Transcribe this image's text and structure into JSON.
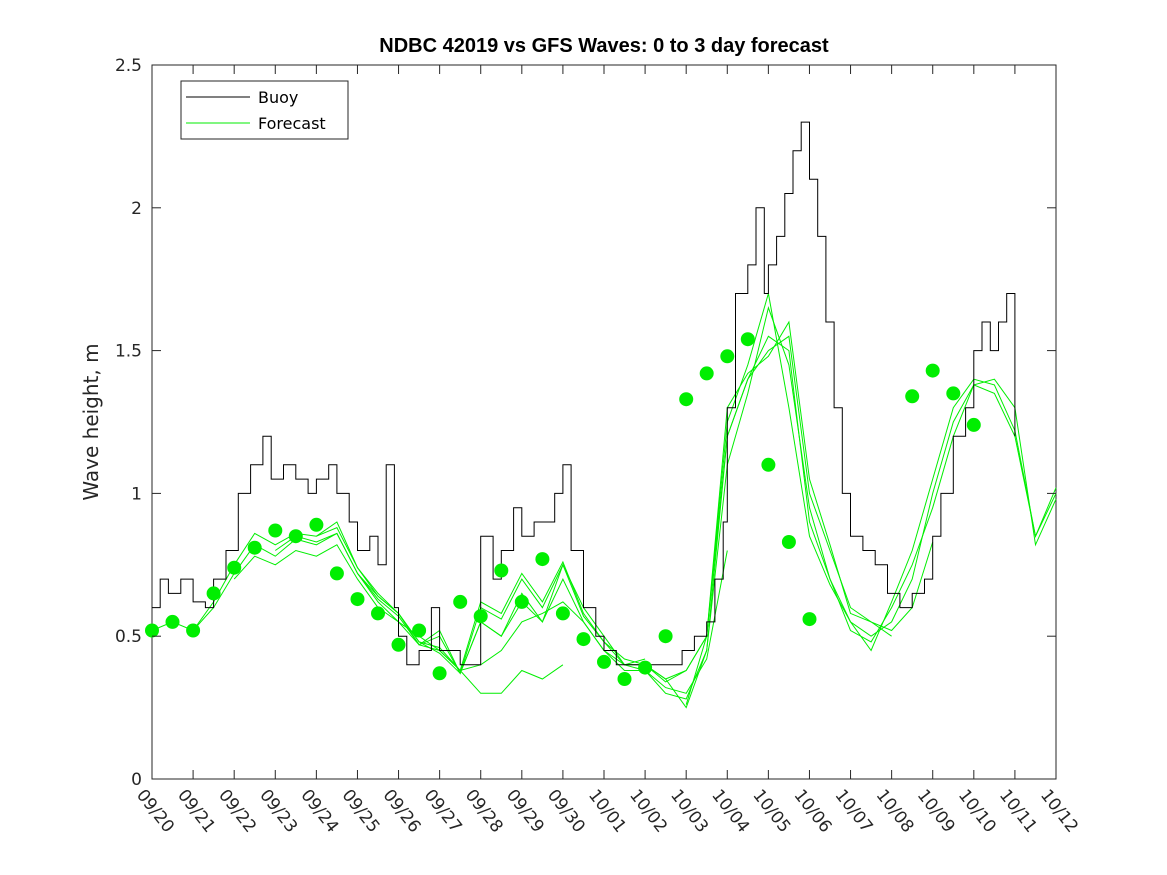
{
  "colors": {
    "buoy": "#000000",
    "forecast": "#00ee00",
    "marker": "#00ee00",
    "axis": "#262626",
    "background": "#ffffff"
  },
  "chart_data": {
    "type": "line",
    "title": "NDBC 42019 vs GFS Waves: 0 to 3 day forecast",
    "xlabel": "",
    "ylabel": "Wave height, m",
    "xlim": [
      0,
      22
    ],
    "ylim": [
      0,
      2.5
    ],
    "grid": false,
    "legend_position": "top-left",
    "x_tick_labels": [
      "09/20",
      "09/21",
      "09/22",
      "09/23",
      "09/24",
      "09/25",
      "09/26",
      "09/27",
      "09/28",
      "09/29",
      "09/30",
      "10/01",
      "10/02",
      "10/03",
      "10/04",
      "10/05",
      "10/06",
      "10/07",
      "10/08",
      "10/09",
      "10/10",
      "10/11",
      "10/12"
    ],
    "y_ticks": [
      0,
      0.5,
      1,
      1.5,
      2,
      2.5
    ],
    "y_tick_labels": [
      "0",
      "0.5",
      "1",
      "1.5",
      "2",
      "2.5"
    ],
    "series": [
      {
        "name": "Buoy",
        "kind": "line",
        "x": [
          0,
          0.2,
          0.4,
          0.7,
          1.0,
          1.3,
          1.5,
          1.8,
          2.1,
          2.4,
          2.7,
          2.9,
          3.2,
          3.5,
          3.8,
          4.0,
          4.3,
          4.5,
          4.8,
          5.0,
          5.3,
          5.5,
          5.7,
          5.9,
          6.0,
          6.2,
          6.5,
          6.8,
          7.0,
          7.2,
          7.5,
          7.8,
          8.0,
          8.3,
          8.5,
          8.8,
          9.0,
          9.3,
          9.5,
          9.8,
          10.0,
          10.2,
          10.5,
          10.8,
          11.0,
          11.3,
          11.6,
          12.0,
          12.3,
          12.6,
          12.9,
          13.2,
          13.5,
          13.7,
          13.9,
          14.0,
          14.2,
          14.5,
          14.7,
          14.9,
          15.0,
          15.2,
          15.4,
          15.6,
          15.8,
          16.0,
          16.2,
          16.4,
          16.6,
          16.8,
          17.0,
          17.3,
          17.6,
          17.9,
          18.2,
          18.5,
          18.8,
          19.0,
          19.2,
          19.5,
          19.8,
          20.0,
          20.2,
          20.4,
          20.6,
          20.8,
          21.0
        ],
        "values": [
          0.6,
          0.7,
          0.65,
          0.7,
          0.62,
          0.6,
          0.7,
          0.8,
          1.0,
          1.1,
          1.2,
          1.05,
          1.1,
          1.05,
          1.0,
          1.05,
          1.1,
          1.0,
          0.9,
          0.8,
          0.85,
          0.75,
          1.1,
          0.6,
          0.5,
          0.4,
          0.45,
          0.6,
          0.45,
          0.45,
          0.4,
          0.4,
          0.85,
          0.7,
          0.8,
          0.95,
          0.85,
          0.9,
          0.9,
          1.0,
          1.1,
          0.8,
          0.6,
          0.5,
          0.45,
          0.4,
          0.4,
          0.4,
          0.4,
          0.4,
          0.45,
          0.5,
          0.55,
          0.7,
          0.9,
          1.3,
          1.7,
          1.8,
          2.0,
          1.7,
          1.8,
          1.9,
          2.05,
          2.2,
          2.3,
          2.1,
          1.9,
          1.6,
          1.3,
          1.0,
          0.85,
          0.8,
          0.75,
          0.65,
          0.6,
          0.65,
          0.7,
          0.85,
          1.0,
          1.2,
          1.3,
          1.5,
          1.6,
          1.5,
          1.6,
          1.7,
          1.2
        ]
      },
      {
        "name": "Forecast",
        "kind": "lines",
        "runs": [
          {
            "x": [
              0.0,
              0.5,
              1.0,
              1.5,
              2.0,
              2.5,
              3.0,
              3.5,
              4.0,
              4.5,
              5.0,
              5.5,
              6.0
            ],
            "values": [
              0.52,
              0.55,
              0.52,
              0.62,
              0.75,
              0.86,
              0.82,
              0.86,
              0.85,
              0.9,
              0.74,
              0.64,
              0.58
            ]
          },
          {
            "x": [
              1.0,
              1.5,
              2.0,
              2.5,
              3.0,
              3.5,
              4.0,
              4.5,
              5.0,
              5.5,
              6.0,
              6.5,
              7.0,
              7.5,
              8.0,
              8.5,
              9.0,
              9.5,
              10.0
            ],
            "values": [
              0.52,
              0.6,
              0.72,
              0.82,
              0.78,
              0.84,
              0.82,
              0.86,
              0.72,
              0.62,
              0.55,
              0.5,
              0.45,
              0.38,
              0.3,
              0.3,
              0.38,
              0.35,
              0.4
            ]
          },
          {
            "x": [
              2.0,
              2.5,
              3.0,
              3.5,
              4.0,
              4.5,
              5.0,
              5.5,
              6.0,
              6.5,
              7.0,
              7.5,
              8.0,
              8.5,
              9.0,
              9.5,
              10.0,
              10.5,
              11.0,
              11.5,
              12.0
            ],
            "values": [
              0.7,
              0.78,
              0.75,
              0.8,
              0.78,
              0.82,
              0.7,
              0.6,
              0.55,
              0.47,
              0.45,
              0.38,
              0.4,
              0.45,
              0.55,
              0.58,
              0.62,
              0.55,
              0.45,
              0.4,
              0.42
            ]
          },
          {
            "x": [
              3.0,
              3.5,
              4.0,
              4.5,
              5.0,
              5.5,
              6.0,
              6.5,
              7.0,
              7.5,
              8.0,
              8.5,
              9.0,
              9.5,
              10.0,
              10.5,
              11.0,
              11.5,
              12.0,
              12.5,
              13.0,
              13.5,
              14.0
            ],
            "values": [
              0.8,
              0.85,
              0.83,
              0.86,
              0.72,
              0.64,
              0.58,
              0.48,
              0.44,
              0.37,
              0.55,
              0.5,
              0.62,
              0.55,
              0.75,
              0.6,
              0.5,
              0.4,
              0.38,
              0.32,
              0.3,
              0.42,
              0.8
            ]
          },
          {
            "x": [
              4.0,
              4.5,
              5.0,
              5.5,
              6.0,
              6.5,
              7.0,
              7.5,
              8.0,
              8.5,
              9.0,
              9.5,
              10.0,
              10.5,
              11.0,
              11.5,
              12.0,
              12.5,
              13.0,
              13.5,
              14.0,
              14.5,
              15.0,
              15.5,
              16.0,
              16.5,
              17.0,
              17.5,
              18.0
            ],
            "values": [
              0.85,
              0.88,
              0.74,
              0.65,
              0.58,
              0.48,
              0.46,
              0.38,
              0.62,
              0.58,
              0.72,
              0.62,
              0.76,
              0.58,
              0.48,
              0.42,
              0.4,
              0.35,
              0.38,
              0.5,
              1.2,
              1.4,
              1.5,
              1.55,
              1.0,
              0.8,
              0.6,
              0.55,
              0.5
            ]
          },
          {
            "x": [
              5.0,
              5.5,
              6.0,
              6.5,
              7.0,
              7.5,
              8.0,
              8.5,
              9.0,
              9.5,
              10.0,
              10.5,
              11.0,
              11.5,
              12.0,
              12.5,
              13.0,
              13.5,
              14.0,
              14.5,
              15.0,
              15.5,
              16.0,
              16.5,
              17.0,
              17.5,
              18.0,
              18.5,
              19.0
            ],
            "values": [
              0.72,
              0.63,
              0.57,
              0.47,
              0.5,
              0.37,
              0.6,
              0.56,
              0.7,
              0.6,
              0.75,
              0.57,
              0.48,
              0.4,
              0.4,
              0.34,
              0.38,
              0.5,
              1.3,
              1.42,
              1.48,
              1.6,
              1.05,
              0.82,
              0.58,
              0.55,
              0.52,
              0.6,
              0.83
            ]
          },
          {
            "x": [
              6.0,
              6.5,
              7.0,
              7.5,
              8.0,
              8.5,
              9.0,
              9.5,
              10.0,
              10.5,
              11.0,
              11.5,
              12.0,
              12.5,
              13.0,
              13.5,
              14.0,
              14.5,
              15.0,
              15.5,
              16.0,
              16.5,
              17.0,
              17.5,
              18.0,
              18.5,
              19.0,
              19.5,
              20.0,
              20.5,
              21.0,
              21.5,
              22.0
            ],
            "values": [
              0.58,
              0.47,
              0.52,
              0.37,
              0.55,
              0.5,
              0.65,
              0.55,
              0.7,
              0.55,
              0.45,
              0.38,
              0.38,
              0.3,
              0.28,
              0.45,
              1.2,
              1.4,
              1.55,
              1.5,
              0.9,
              0.7,
              0.55,
              0.5,
              0.55,
              0.7,
              1.0,
              1.25,
              1.38,
              1.35,
              1.2,
              0.85,
              1.0
            ]
          },
          {
            "x": [
              12.0,
              12.5,
              13.0,
              13.5,
              14.0,
              14.5,
              15.0,
              15.5,
              16.0,
              16.5,
              17.0,
              17.5,
              18.0,
              18.5,
              19.0,
              19.5,
              20.0,
              20.5,
              21.0,
              21.5,
              22.0
            ],
            "values": [
              0.4,
              0.35,
              0.25,
              0.45,
              1.1,
              1.35,
              1.65,
              1.45,
              0.95,
              0.7,
              0.52,
              0.48,
              0.6,
              0.75,
              0.95,
              1.2,
              1.38,
              1.4,
              1.3,
              0.82,
              0.98
            ]
          },
          {
            "x": [
              13.0,
              13.5,
              14.0,
              14.5,
              15.0,
              15.5,
              16.0,
              16.5,
              17.0,
              17.5,
              18.0,
              18.5,
              19.0,
              19.5,
              20.0,
              20.5,
              21.0,
              21.5,
              22.0
            ],
            "values": [
              0.26,
              0.5,
              1.25,
              1.45,
              1.7,
              1.3,
              0.85,
              0.68,
              0.55,
              0.45,
              0.62,
              0.8,
              1.05,
              1.3,
              1.4,
              1.38,
              1.22,
              0.85,
              1.02
            ]
          }
        ]
      },
      {
        "name": "Forecast markers",
        "kind": "markers",
        "x": [
          0.0,
          0.5,
          1.0,
          1.5,
          2.0,
          2.5,
          3.0,
          3.5,
          4.0,
          4.5,
          5.0,
          5.5,
          6.0,
          6.5,
          7.0,
          7.5,
          8.0,
          8.5,
          9.0,
          9.5,
          10.0,
          10.5,
          11.0,
          11.5,
          12.0,
          12.5,
          13.0,
          13.5,
          14.0,
          14.5,
          15.0,
          15.5,
          16.0,
          16.5,
          17.0,
          17.5,
          18.0,
          18.5,
          19.0,
          19.5,
          20.0,
          20.5,
          21.0
        ],
        "values": [
          0.52,
          0.55,
          0.52,
          0.65,
          0.74,
          0.81,
          0.87,
          0.85,
          0.89,
          0.72,
          0.63,
          0.58,
          0.47,
          0.52,
          0.37,
          0.62,
          0.57,
          0.73,
          0.62,
          0.77,
          0.58,
          0.49,
          0.41,
          0.35,
          0.39,
          0.5,
          1.33,
          1.42,
          1.48,
          1.54,
          1.1,
          0.83,
          0.56,
          null,
          null,
          null,
          null,
          1.34,
          1.43,
          1.35,
          1.24,
          null,
          null
        ]
      }
    ],
    "legend": [
      "Buoy",
      "Forecast"
    ]
  }
}
